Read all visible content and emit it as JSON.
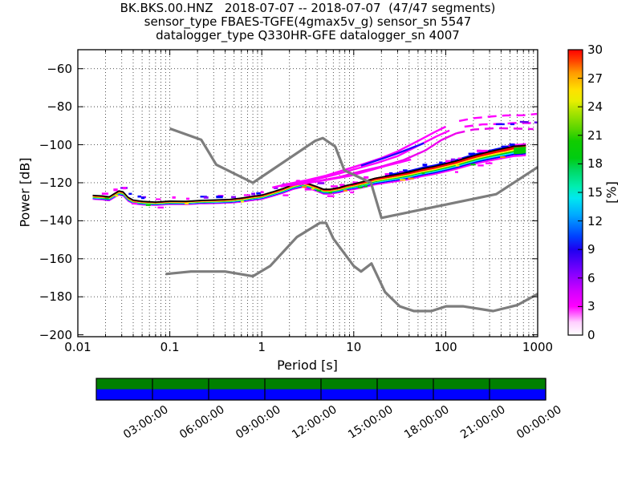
{
  "title_lines": [
    "BK.BKS.00.HNZ   2018-07-07 -- 2018-07-07  (47/47 segments)",
    "sensor_type FBAES-TGFE(4gmax5v_g) sensor_sn 5547",
    "datalogger_type Q330HR-GFE datalogger_sn 4007"
  ],
  "axes": {
    "xlabel": "Period [s]",
    "ylabel": "Power [dB]",
    "x_ticks": [
      {
        "v": 0.01,
        "label": "0.01"
      },
      {
        "v": 0.1,
        "label": "0.1"
      },
      {
        "v": 1,
        "label": "1"
      },
      {
        "v": 10,
        "label": "10"
      },
      {
        "v": 100,
        "label": "100"
      },
      {
        "v": 1000,
        "label": "1000"
      }
    ],
    "y_ticks": [
      {
        "v": -60,
        "label": "−60"
      },
      {
        "v": -80,
        "label": "−80"
      },
      {
        "v": -100,
        "label": "−100"
      },
      {
        "v": -120,
        "label": "−120"
      },
      {
        "v": -140,
        "label": "−140"
      },
      {
        "v": -160,
        "label": "−160"
      },
      {
        "v": -180,
        "label": "−180"
      },
      {
        "v": -200,
        "label": "−200"
      }
    ]
  },
  "colorbar": {
    "label": "[%]",
    "ticks": [
      {
        "v": 0,
        "label": "0"
      },
      {
        "v": 3,
        "label": "3"
      },
      {
        "v": 6,
        "label": "6"
      },
      {
        "v": 9,
        "label": "9"
      },
      {
        "v": 12,
        "label": "12"
      },
      {
        "v": 15,
        "label": "15"
      },
      {
        "v": 18,
        "label": "18"
      },
      {
        "v": 21,
        "label": "21"
      },
      {
        "v": 24,
        "label": "24"
      },
      {
        "v": 27,
        "label": "27"
      },
      {
        "v": 30,
        "label": "30"
      }
    ]
  },
  "timeline": {
    "top_color": "#008000",
    "bottom_color": "#0000ff",
    "tick_labels": [
      {
        "hour": 3,
        "label": "03:00:00"
      },
      {
        "hour": 6,
        "label": "06:00:00"
      },
      {
        "hour": 9,
        "label": "09:00:00"
      },
      {
        "hour": 12,
        "label": "12:00:00"
      },
      {
        "hour": 15,
        "label": "15:00:00"
      },
      {
        "hour": 18,
        "label": "18:00:00"
      },
      {
        "hour": 21,
        "label": "21:00:00"
      },
      {
        "hour": 24,
        "label": "00:00:00"
      }
    ]
  },
  "chart_data": {
    "type": "heatmap",
    "title": "BK.BKS.00.HNZ 2018-07-07 -- 2018-07-07 (47/47 segments)",
    "xlabel": "Period [s]",
    "ylabel": "Power [dB]",
    "xscale": "log",
    "xlim": [
      0.01,
      1000
    ],
    "ylim": [
      -201,
      -50
    ],
    "grid": true,
    "colorbar_label": "[%]",
    "colorbar_range": [
      0,
      30
    ],
    "colorbar_tick_step": 3,
    "noise_models": {
      "color": "#7d7d7d",
      "nhnm": [
        [
          0.1,
          -91.5
        ],
        [
          0.22,
          -97.4
        ],
        [
          0.32,
          -110.5
        ],
        [
          0.8,
          -120.0
        ],
        [
          3.8,
          -98.0
        ],
        [
          4.6,
          -96.5
        ],
        [
          6.3,
          -101.0
        ],
        [
          7.9,
          -113.5
        ],
        [
          15.4,
          -120.0
        ],
        [
          20.0,
          -138.5
        ],
        [
          354.8,
          -126.0
        ],
        [
          1000.0,
          -111.8
        ]
      ],
      "nlnm": [
        [
          0.09,
          -168.0
        ],
        [
          0.17,
          -166.7
        ],
        [
          0.4,
          -166.7
        ],
        [
          0.8,
          -169.2
        ],
        [
          1.24,
          -163.7
        ],
        [
          2.4,
          -148.6
        ],
        [
          4.3,
          -141.1
        ],
        [
          5.0,
          -141.1
        ],
        [
          6.0,
          -149.4
        ],
        [
          10.0,
          -163.8
        ],
        [
          12.0,
          -166.7
        ],
        [
          15.6,
          -162.5
        ],
        [
          21.9,
          -177.5
        ],
        [
          31.6,
          -185.0
        ],
        [
          45.0,
          -187.5
        ],
        [
          70.0,
          -187.5
        ],
        [
          101.0,
          -185.0
        ],
        [
          154.0,
          -185.0
        ],
        [
          328.0,
          -187.5
        ],
        [
          600.0,
          -184.4
        ],
        [
          1000.0,
          -178.5
        ]
      ]
    },
    "psd_band": {
      "mode_color": "#000000",
      "layer_colors": [
        "#ff0000",
        "#ffee00",
        "#00cc00",
        "#00eeff",
        "#0000ff",
        "#ff00ff"
      ],
      "points": [
        [
          0.0145,
          -126.6,
          2.3
        ],
        [
          0.018,
          -126.9,
          2.3
        ],
        [
          0.022,
          -127.2,
          2.3
        ],
        [
          0.025,
          -125.6,
          2.4
        ],
        [
          0.028,
          -124.2,
          2.4
        ],
        [
          0.031,
          -124.7,
          2.4
        ],
        [
          0.035,
          -127.6,
          2.3
        ],
        [
          0.04,
          -129.3,
          2.2
        ],
        [
          0.05,
          -130.0,
          2.1
        ],
        [
          0.07,
          -130.3,
          2.0
        ],
        [
          0.1,
          -129.8,
          2.0
        ],
        [
          0.15,
          -129.5,
          2.0
        ],
        [
          0.22,
          -129.2,
          2.0
        ],
        [
          0.3,
          -129.0,
          2.1
        ],
        [
          0.45,
          -128.8,
          2.2
        ],
        [
          0.6,
          -128.2,
          2.3
        ],
        [
          0.8,
          -127.3,
          2.4
        ],
        [
          1.0,
          -126.3,
          2.5
        ],
        [
          1.3,
          -124.7,
          2.6
        ],
        [
          1.7,
          -122.9,
          2.7
        ],
        [
          2.2,
          -121.0,
          2.8
        ],
        [
          2.8,
          -119.9,
          2.8
        ],
        [
          3.3,
          -120.5,
          2.8
        ],
        [
          4.0,
          -122.3,
          2.8
        ],
        [
          4.7,
          -123.3,
          2.8
        ],
        [
          5.5,
          -123.2,
          2.8
        ],
        [
          7.0,
          -122.4,
          2.9
        ],
        [
          8.5,
          -121.5,
          3.0
        ],
        [
          10,
          -120.7,
          3.2
        ],
        [
          13,
          -119.2,
          3.4
        ],
        [
          17,
          -117.9,
          3.6
        ],
        [
          22,
          -116.8,
          3.8
        ],
        [
          30,
          -115.5,
          4.0
        ],
        [
          40,
          -114.2,
          4.2
        ],
        [
          55,
          -112.8,
          4.3
        ],
        [
          75,
          -111.4,
          4.4
        ],
        [
          100,
          -110.2,
          4.5
        ],
        [
          130,
          -108.5,
          4.6
        ],
        [
          170,
          -106.8,
          4.7
        ],
        [
          220,
          -105.2,
          4.8
        ],
        [
          280,
          -103.9,
          5.0
        ],
        [
          360,
          -102.6,
          5.2
        ],
        [
          450,
          -101.6,
          5.4
        ],
        [
          550,
          -100.9,
          5.6
        ],
        [
          650,
          -100.4,
          5.6
        ],
        [
          745,
          -100.3,
          5.6
        ]
      ]
    },
    "outliers": [
      {
        "color": "#ff00ff",
        "dash_after": 120,
        "points": [
          [
            1.3,
            -122.5
          ],
          [
            2,
            -120.5
          ],
          [
            3,
            -118.8
          ],
          [
            5,
            -116.2
          ],
          [
            8,
            -113.2
          ],
          [
            13,
            -110
          ],
          [
            20,
            -107
          ],
          [
            30,
            -103.5
          ],
          [
            50,
            -98
          ],
          [
            75,
            -93.5
          ],
          [
            100,
            -90.5
          ],
          [
            140,
            -87.5
          ],
          [
            200,
            -86
          ],
          [
            300,
            -85.2
          ],
          [
            450,
            -84.6
          ],
          [
            700,
            -84.5
          ],
          [
            980,
            -83.8
          ]
        ]
      },
      {
        "color": "#ff00ff",
        "dash_after": 130,
        "points": [
          [
            1.6,
            -122
          ],
          [
            3,
            -119.5
          ],
          [
            6,
            -116
          ],
          [
            10,
            -113
          ],
          [
            18,
            -109.5
          ],
          [
            30,
            -106
          ],
          [
            55,
            -99.5
          ],
          [
            80,
            -95.5
          ],
          [
            110,
            -92.5
          ],
          [
            160,
            -90.5
          ],
          [
            250,
            -89.3
          ],
          [
            400,
            -89.0
          ],
          [
            600,
            -88.5
          ],
          [
            850,
            -88.6
          ]
        ]
      },
      {
        "color": "#ee00ee",
        "dash_after": 140,
        "points": [
          [
            2,
            -121.5
          ],
          [
            4,
            -119.2
          ],
          [
            7,
            -117
          ],
          [
            12,
            -114
          ],
          [
            20,
            -111.5
          ],
          [
            35,
            -108
          ],
          [
            60,
            -103
          ],
          [
            90,
            -97.5
          ],
          [
            130,
            -94
          ],
          [
            200,
            -92
          ],
          [
            350,
            -91.3
          ],
          [
            600,
            -91.5
          ],
          [
            900,
            -91.8
          ]
        ]
      },
      {
        "color": "#ff00ff",
        "dash_after": 999,
        "points": [
          [
            2.5,
            -120.9
          ],
          [
            5,
            -118.6
          ],
          [
            9,
            -116.4
          ],
          [
            14,
            -113.9
          ],
          [
            22,
            -111.2
          ],
          [
            32,
            -109.2
          ],
          [
            42,
            -107.8
          ]
        ]
      },
      {
        "color": "#2200ff",
        "dash_after": 999,
        "points": [
          [
            12,
            -111
          ],
          [
            20,
            -107.5
          ],
          [
            30,
            -104.5
          ],
          [
            45,
            -101.2
          ],
          [
            58,
            -99.2
          ]
        ]
      },
      {
        "color": "#2200ff",
        "dash_after": 300,
        "points": [
          [
            350,
            -89.2
          ],
          [
            560,
            -89.2
          ]
        ]
      },
      {
        "color": "#6600ee",
        "dash_after": 500,
        "points": [
          [
            640,
            -87.9
          ],
          [
            1000,
            -88.3
          ]
        ]
      }
    ]
  }
}
